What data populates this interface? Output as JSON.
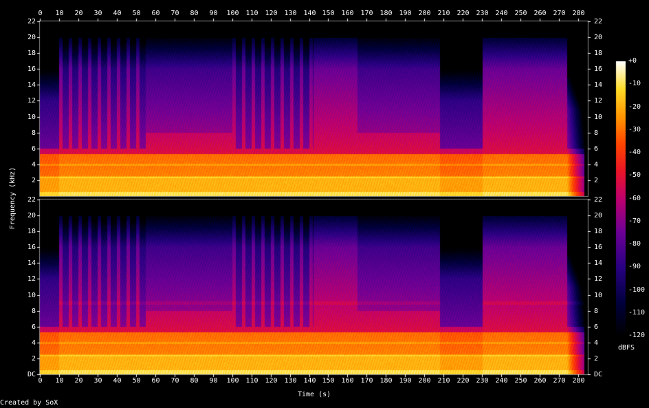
{
  "chart_data": {
    "type": "heatmap",
    "title": "",
    "xlabel": "Time (s)",
    "ylabel": "Frequency (kHz)",
    "colorbar_label": "dBFS",
    "credit": "Created by SoX",
    "x_ticks": [
      "0",
      "10",
      "20",
      "30",
      "40",
      "50",
      "60",
      "70",
      "80",
      "90",
      "100",
      "110",
      "120",
      "130",
      "140",
      "150",
      "160",
      "170",
      "180",
      "190",
      "200",
      "210",
      "220",
      "230",
      "240",
      "250",
      "260",
      "270",
      "280"
    ],
    "y_ticks_kHz": [
      "DC",
      "2",
      "4",
      "6",
      "8",
      "10",
      "12",
      "14",
      "16",
      "18",
      "20",
      "22"
    ],
    "colorbar_ticks": [
      "+0",
      "-10",
      "-20",
      "-30",
      "-40",
      "-50",
      "-60",
      "-70",
      "-80",
      "-90",
      "-100",
      "-110",
      "-120"
    ],
    "xlim": [
      0,
      285
    ],
    "ylim_kHz": [
      0,
      22
    ],
    "zlim_dBFS": [
      -120,
      0
    ],
    "channels": 2,
    "segments": [
      {
        "t0": 0,
        "t1": 10,
        "top_kHz": 16,
        "style": "quiet"
      },
      {
        "t0": 10,
        "t1": 55,
        "top_kHz": 20,
        "style": "pulses"
      },
      {
        "t0": 55,
        "t1": 100,
        "top_kHz": 20,
        "style": "dense"
      },
      {
        "t0": 100,
        "t1": 142,
        "top_kHz": 20,
        "style": "pulses"
      },
      {
        "t0": 142,
        "t1": 165,
        "top_kHz": 20,
        "style": "full"
      },
      {
        "t0": 165,
        "t1": 208,
        "top_kHz": 20,
        "style": "dense"
      },
      {
        "t0": 208,
        "t1": 230,
        "top_kHz": 16,
        "style": "quiet"
      },
      {
        "t0": 230,
        "t1": 274,
        "top_kHz": 20,
        "style": "full"
      },
      {
        "t0": 274,
        "t1": 283,
        "top_kHz": 15,
        "style": "fade"
      }
    ]
  }
}
